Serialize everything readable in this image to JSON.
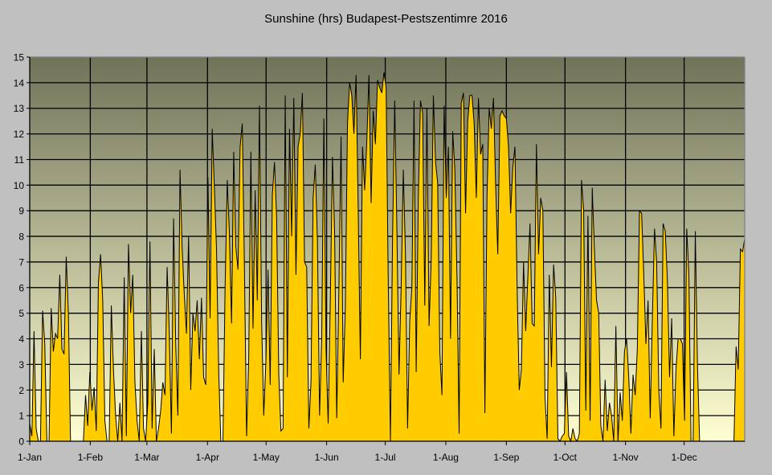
{
  "chart_data": {
    "type": "area",
    "title": "Sunshine (hrs) Budapest-Pestszentimre 2016",
    "xlabel": "",
    "ylabel": "",
    "ylim": [
      0,
      15
    ],
    "yticks": [
      0,
      1,
      2,
      3,
      4,
      5,
      6,
      7,
      8,
      9,
      10,
      11,
      12,
      13,
      14,
      15
    ],
    "xlim_days": [
      0,
      366
    ],
    "xticks": [
      {
        "label": "1-Jan",
        "day": 0
      },
      {
        "label": "1-Feb",
        "day": 31
      },
      {
        "label": "1-Mar",
        "day": 60
      },
      {
        "label": "1-Apr",
        "day": 91
      },
      {
        "label": "1-May",
        "day": 121
      },
      {
        "label": "1-Jun",
        "day": 152
      },
      {
        "label": "1-Jul",
        "day": 182
      },
      {
        "label": "1-Aug",
        "day": 213
      },
      {
        "label": "1-Sep",
        "day": 244
      },
      {
        "label": "1-Oct",
        "day": 274
      },
      {
        "label": "1-Nov",
        "day": 305
      },
      {
        "label": "1-Dec",
        "day": 335
      }
    ],
    "grid": true,
    "legend": "none",
    "colors": {
      "fill": "#FFCC00",
      "outline": "#000000",
      "plot_top": "#717359",
      "plot_bottom": "#FFFFD2",
      "background": "#C0C0C0"
    },
    "series": [
      {
        "name": "Sunshine (hrs)",
        "values": [
          0.7,
          0.2,
          4.3,
          0.5,
          0.0,
          0.0,
          5.1,
          3.8,
          0.0,
          0.0,
          5.2,
          3.5,
          4.2,
          4.0,
          6.5,
          3.6,
          3.4,
          7.2,
          5.0,
          0.0,
          0.0,
          0.0,
          0.0,
          0.0,
          0.0,
          0.0,
          1.8,
          0.6,
          2.7,
          1.2,
          2.1,
          0.4,
          6.2,
          7.3,
          5.5,
          0.8,
          0.0,
          0.0,
          5.3,
          2.8,
          1.0,
          0.0,
          1.5,
          0.0,
          6.4,
          0.2,
          7.7,
          5.0,
          6.5,
          2.3,
          0.8,
          0.0,
          4.3,
          0.5,
          0.0,
          1.5,
          7.8,
          0.5,
          3.6,
          0.0,
          0.5,
          1.2,
          2.3,
          1.8,
          6.8,
          4.2,
          0.3,
          8.7,
          3.8,
          1.0,
          10.6,
          7.5,
          5.7,
          4.2,
          8.0,
          2.0,
          5.0,
          4.3,
          5.5,
          3.2,
          5.6,
          2.5,
          2.2,
          10.3,
          4.8,
          12.2,
          9.9,
          7.5,
          2.8,
          0.0,
          0.0,
          6.0,
          10.2,
          8.1,
          4.6,
          11.3,
          7.6,
          6.7,
          11.5,
          12.4,
          6.8,
          0.2,
          3.2,
          11.3,
          4.4,
          9.8,
          5.5,
          13.1,
          4.7,
          1.0,
          3.1,
          6.7,
          2.2,
          9.6,
          10.9,
          8.7,
          2.6,
          0.4,
          0.5,
          13.5,
          2.5,
          12.2,
          8.0,
          13.4,
          6.5,
          11.5,
          12.0,
          13.6,
          7.0,
          6.8,
          0.5,
          2.3,
          9.5,
          10.8,
          7.8,
          1.0,
          4.0,
          12.6,
          3.6,
          0.7,
          5.5,
          11.1,
          8.2,
          0.9,
          5.9,
          11.9,
          2.3,
          5.2,
          12.4,
          14.0,
          13.5,
          12.0,
          14.3,
          9.0,
          3.2,
          11.5,
          9.8,
          11.7,
          14.3,
          9.3,
          12.9,
          11.6,
          14.1,
          13.8,
          13.6,
          14.4,
          13.8,
          6.1,
          0.0,
          8.0,
          13.3,
          8.3,
          2.6,
          6.0,
          10.6,
          7.3,
          0.5,
          4.7,
          6.0,
          13.3,
          2.7,
          9.5,
          13.3,
          12.8,
          5.3,
          13.0,
          4.5,
          7.1,
          13.5,
          10.9,
          10.1,
          3.5,
          1.8,
          13.1,
          9.5,
          11.5,
          4.0,
          12.1,
          10.6,
          6.4,
          0.3,
          13.2,
          13.6,
          8.9,
          12.5,
          13.5,
          13.5,
          12.4,
          9.5,
          13.4,
          11.2,
          11.6,
          1.1,
          9.6,
          13.0,
          12.2,
          13.4,
          10.0,
          7.3,
          12.7,
          12.9,
          12.7,
          12.6,
          11.5,
          8.9,
          10.7,
          11.5,
          6.0,
          2.0,
          2.8,
          7.0,
          4.3,
          6.4,
          8.5,
          4.6,
          4.5,
          11.6,
          7.3,
          9.5,
          9.0,
          1.7,
          0.1,
          6.5,
          2.9,
          6.9,
          5.6,
          0.1,
          0.0,
          0.2,
          0.3,
          2.7,
          0.2,
          0.0,
          0.5,
          0.1,
          0.0,
          0.3,
          10.2,
          9.0,
          1.2,
          8.8,
          0.8,
          9.9,
          7.5,
          5.5,
          5.0,
          0.6,
          0.0,
          2.4,
          0.4,
          1.5,
          1.0,
          0.0,
          4.5,
          0.0,
          1.9,
          0.8,
          3.5,
          4.0,
          2.5,
          0.3,
          2.6,
          1.8,
          3.6,
          9.0,
          8.9,
          6.5,
          3.8,
          5.5,
          0.9,
          4.8,
          8.3,
          7.0,
          2.0,
          0.5,
          8.5,
          8.2,
          6.3,
          2.5,
          4.8,
          0.2,
          2.8,
          4.0,
          4.0,
          3.8,
          0.8,
          8.3,
          6.5,
          0.0,
          0.0,
          8.2,
          3.0,
          0.0,
          0.0,
          0.0,
          0.0,
          0.0,
          0.0,
          0.0,
          0.0,
          0.0,
          0.0,
          0.0,
          0.0,
          0.0,
          0.0,
          0.0,
          0.0,
          0.0,
          3.7,
          2.8,
          7.5,
          7.4,
          7.9
        ]
      }
    ]
  }
}
